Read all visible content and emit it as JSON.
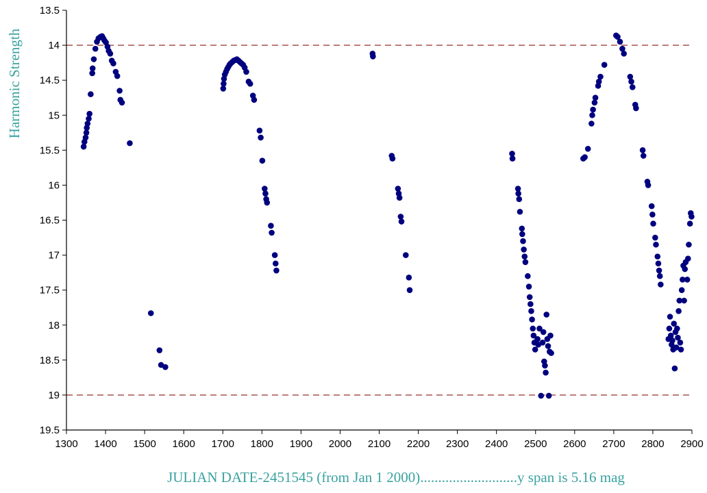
{
  "chart_data": {
    "type": "scatter",
    "title": "",
    "xlabel": "JULIAN DATE-2451545 (from Jan 1 2000)...........................y span is 5.16 mag",
    "ylabel": "Harmonic Strength",
    "xlim": [
      1300,
      2900
    ],
    "ylim": [
      13.5,
      19.5
    ],
    "y_inverted": true,
    "grid": false,
    "x_ticks": [
      1300,
      1400,
      1500,
      1600,
      1700,
      1800,
      1900,
      2000,
      2100,
      2200,
      2300,
      2400,
      2500,
      2600,
      2700,
      2800,
      2900
    ],
    "y_ticks": [
      13.5,
      14,
      14.5,
      15,
      15.5,
      16,
      16.5,
      17,
      17.5,
      18,
      18.5,
      19,
      19.5
    ],
    "y_tick_labels": [
      "13.5",
      "14",
      "14.5",
      "15",
      "15.5",
      "16",
      "16.5",
      "17",
      "17.5",
      "18",
      "18.5",
      "19",
      "19.5"
    ],
    "reference_lines": [
      14,
      19
    ],
    "colors": {
      "points": "#00007f",
      "reference_line": "#a04040",
      "axis_title": "#3aa1a1"
    },
    "series": [
      {
        "points": [
          [
            1344,
            15.45
          ],
          [
            1346,
            15.38
          ],
          [
            1349,
            15.32
          ],
          [
            1351,
            15.25
          ],
          [
            1352,
            15.18
          ],
          [
            1354,
            15.12
          ],
          [
            1357,
            15.05
          ],
          [
            1359,
            14.98
          ],
          [
            1362,
            14.7
          ],
          [
            1366,
            14.4
          ],
          [
            1367,
            14.33
          ],
          [
            1370,
            14.2
          ],
          [
            1374,
            14.05
          ],
          [
            1378,
            13.95
          ],
          [
            1382,
            13.9
          ],
          [
            1387,
            13.88
          ],
          [
            1391,
            13.87
          ],
          [
            1394,
            13.9
          ],
          [
            1397,
            13.93
          ],
          [
            1401,
            13.96
          ],
          [
            1405,
            14.02
          ],
          [
            1408,
            14.08
          ],
          [
            1412,
            14.12
          ],
          [
            1416,
            14.22
          ],
          [
            1420,
            14.26
          ],
          [
            1426,
            14.38
          ],
          [
            1430,
            14.44
          ],
          [
            1436,
            14.65
          ],
          [
            1438,
            14.78
          ],
          [
            1442,
            14.82
          ],
          [
            1462,
            15.4
          ],
          [
            1516,
            17.83
          ],
          [
            1538,
            18.36
          ],
          [
            1542,
            18.57
          ],
          [
            1553,
            18.6
          ],
          [
            1701,
            14.62
          ],
          [
            1702,
            14.55
          ],
          [
            1703,
            14.48
          ],
          [
            1705,
            14.42
          ],
          [
            1708,
            14.38
          ],
          [
            1711,
            14.34
          ],
          [
            1714,
            14.31
          ],
          [
            1717,
            14.28
          ],
          [
            1720,
            14.26
          ],
          [
            1724,
            14.24
          ],
          [
            1728,
            14.22
          ],
          [
            1732,
            14.21
          ],
          [
            1736,
            14.2
          ],
          [
            1740,
            14.22
          ],
          [
            1744,
            14.24
          ],
          [
            1748,
            14.26
          ],
          [
            1752,
            14.28
          ],
          [
            1756,
            14.32
          ],
          [
            1760,
            14.38
          ],
          [
            1766,
            14.52
          ],
          [
            1770,
            14.55
          ],
          [
            1777,
            14.72
          ],
          [
            1780,
            14.78
          ],
          [
            1794,
            15.22
          ],
          [
            1797,
            15.32
          ],
          [
            1801,
            15.65
          ],
          [
            1807,
            16.05
          ],
          [
            1809,
            16.12
          ],
          [
            1811,
            16.2
          ],
          [
            1813,
            16.25
          ],
          [
            1823,
            16.58
          ],
          [
            1825,
            16.68
          ],
          [
            1833,
            17.0
          ],
          [
            1835,
            17.12
          ],
          [
            1837,
            17.22
          ],
          [
            2083,
            14.12
          ],
          [
            2084,
            14.16
          ],
          [
            2132,
            15.58
          ],
          [
            2134,
            15.62
          ],
          [
            2148,
            16.05
          ],
          [
            2150,
            16.12
          ],
          [
            2152,
            16.18
          ],
          [
            2155,
            16.45
          ],
          [
            2157,
            16.52
          ],
          [
            2168,
            17.0
          ],
          [
            2176,
            17.32
          ],
          [
            2178,
            17.5
          ],
          [
            2440,
            15.55
          ],
          [
            2441,
            15.62
          ],
          [
            2455,
            16.05
          ],
          [
            2456,
            16.12
          ],
          [
            2458,
            16.2
          ],
          [
            2460,
            16.38
          ],
          [
            2465,
            16.62
          ],
          [
            2466,
            16.7
          ],
          [
            2468,
            16.8
          ],
          [
            2470,
            16.92
          ],
          [
            2472,
            17.02
          ],
          [
            2474,
            17.1
          ],
          [
            2480,
            17.3
          ],
          [
            2483,
            17.45
          ],
          [
            2485,
            17.6
          ],
          [
            2487,
            17.7
          ],
          [
            2489,
            17.8
          ],
          [
            2491,
            17.92
          ],
          [
            2493,
            18.05
          ],
          [
            2495,
            18.15
          ],
          [
            2497,
            18.25
          ],
          [
            2499,
            18.35
          ],
          [
            2505,
            18.2
          ],
          [
            2507,
            18.28
          ],
          [
            2510,
            18.05
          ],
          [
            2514,
            19.01
          ],
          [
            2518,
            18.25
          ],
          [
            2520,
            18.1
          ],
          [
            2522,
            18.52
          ],
          [
            2524,
            18.58
          ],
          [
            2526,
            18.68
          ],
          [
            2528,
            17.85
          ],
          [
            2530,
            18.2
          ],
          [
            2532,
            18.3
          ],
          [
            2534,
            19.01
          ],
          [
            2536,
            18.38
          ],
          [
            2538,
            18.15
          ],
          [
            2540,
            18.4
          ],
          [
            2622,
            15.62
          ],
          [
            2626,
            15.6
          ],
          [
            2634,
            15.48
          ],
          [
            2643,
            15.12
          ],
          [
            2645,
            15.0
          ],
          [
            2647,
            14.92
          ],
          [
            2651,
            14.82
          ],
          [
            2653,
            14.75
          ],
          [
            2660,
            14.58
          ],
          [
            2662,
            14.52
          ],
          [
            2666,
            14.45
          ],
          [
            2676,
            14.28
          ],
          [
            2706,
            13.86
          ],
          [
            2710,
            13.88
          ],
          [
            2716,
            13.95
          ],
          [
            2722,
            14.05
          ],
          [
            2726,
            14.12
          ],
          [
            2742,
            14.45
          ],
          [
            2745,
            14.52
          ],
          [
            2748,
            14.6
          ],
          [
            2755,
            14.85
          ],
          [
            2757,
            14.9
          ],
          [
            2774,
            15.5
          ],
          [
            2776,
            15.58
          ],
          [
            2786,
            15.95
          ],
          [
            2788,
            16.0
          ],
          [
            2797,
            16.3
          ],
          [
            2799,
            16.42
          ],
          [
            2801,
            16.55
          ],
          [
            2806,
            16.75
          ],
          [
            2808,
            16.85
          ],
          [
            2812,
            17.02
          ],
          [
            2814,
            17.12
          ],
          [
            2816,
            17.22
          ],
          [
            2818,
            17.3
          ],
          [
            2820,
            17.42
          ],
          [
            2840,
            18.2
          ],
          [
            2842,
            18.05
          ],
          [
            2844,
            17.88
          ],
          [
            2846,
            18.15
          ],
          [
            2848,
            18.28
          ],
          [
            2850,
            18.22
          ],
          [
            2852,
            18.35
          ],
          [
            2854,
            17.98
          ],
          [
            2856,
            18.62
          ],
          [
            2858,
            18.1
          ],
          [
            2860,
            18.32
          ],
          [
            2862,
            18.05
          ],
          [
            2864,
            18.18
          ],
          [
            2866,
            17.8
          ],
          [
            2868,
            17.65
          ],
          [
            2870,
            18.25
          ],
          [
            2872,
            18.35
          ],
          [
            2874,
            17.5
          ],
          [
            2876,
            17.35
          ],
          [
            2878,
            17.15
          ],
          [
            2880,
            17.65
          ],
          [
            2882,
            17.2
          ],
          [
            2884,
            17.1
          ],
          [
            2888,
            17.35
          ],
          [
            2890,
            17.05
          ],
          [
            2892,
            16.85
          ],
          [
            2895,
            16.55
          ],
          [
            2897,
            16.4
          ],
          [
            2899,
            16.45
          ]
        ]
      }
    ]
  }
}
